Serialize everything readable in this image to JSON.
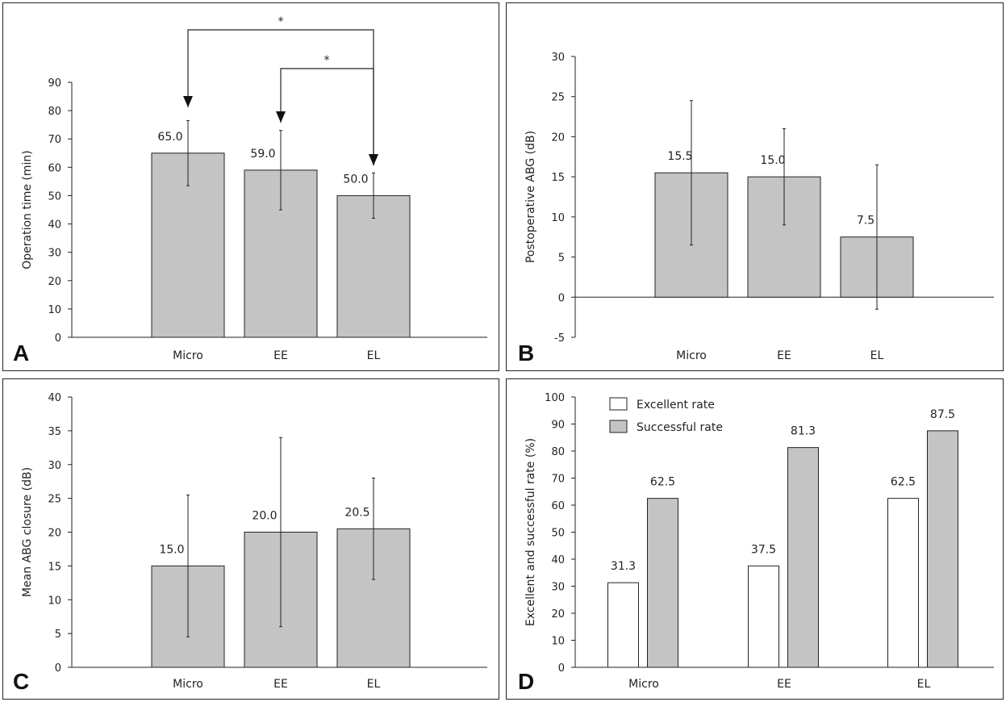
{
  "colors": {
    "bar_gray": "#c4c4c4",
    "bar_white": "#ffffff",
    "line": "#222222"
  },
  "chart_data": [
    {
      "id": "A",
      "type": "bar",
      "panel_label": "A",
      "ylabel": "Operation time (min)",
      "ylim": [
        0,
        90
      ],
      "yticks": [
        0,
        10,
        20,
        30,
        40,
        50,
        60,
        70,
        80,
        90
      ],
      "categories": [
        "Micro",
        "EE",
        "EL"
      ],
      "series": [
        {
          "values": [
            65.0,
            59.0,
            50.0
          ],
          "labels": [
            "65.0",
            "59.0",
            "50.0"
          ],
          "err_low": [
            53.5,
            45,
            42
          ],
          "err_high": [
            76.5,
            73,
            58
          ]
        }
      ],
      "annotations": [
        {
          "type": "significance",
          "from": "Micro",
          "to": "EL",
          "text": "*"
        },
        {
          "type": "significance",
          "from": "EE",
          "to": "EL",
          "text": "*"
        }
      ]
    },
    {
      "id": "B",
      "type": "bar",
      "panel_label": "B",
      "ylabel": "Postoperative ABG (dB)",
      "ylim": [
        -5,
        30
      ],
      "yticks": [
        -5,
        0,
        5,
        10,
        15,
        20,
        25,
        30
      ],
      "categories": [
        "Micro",
        "EE",
        "EL"
      ],
      "series": [
        {
          "values": [
            15.5,
            15.0,
            7.5
          ],
          "labels": [
            "15.5",
            "15.0",
            "7.5"
          ],
          "err_low": [
            6.5,
            9,
            -1.5
          ],
          "err_high": [
            24.5,
            21,
            16.5
          ]
        }
      ]
    },
    {
      "id": "C",
      "type": "bar",
      "panel_label": "C",
      "ylabel": "Mean ABG closure (dB)",
      "ylim": [
        0,
        40
      ],
      "yticks": [
        0,
        5,
        10,
        15,
        20,
        25,
        30,
        35,
        40
      ],
      "categories": [
        "Micro",
        "EE",
        "EL"
      ],
      "series": [
        {
          "values": [
            15.0,
            20.0,
            20.5
          ],
          "labels": [
            "15.0",
            "20.0",
            "20.5"
          ],
          "err_low": [
            4.5,
            6,
            13
          ],
          "err_high": [
            25.5,
            34,
            28
          ]
        }
      ]
    },
    {
      "id": "D",
      "type": "bar",
      "panel_label": "D",
      "ylabel": "Excellent and successful rate (%)",
      "ylim": [
        0,
        100
      ],
      "yticks": [
        0,
        10,
        20,
        30,
        40,
        50,
        60,
        70,
        80,
        90,
        100
      ],
      "categories": [
        "Micro",
        "EE",
        "EL"
      ],
      "legend_position": "top-left",
      "series": [
        {
          "name": "Excellent rate",
          "values": [
            31.3,
            37.5,
            62.5
          ],
          "labels": [
            "31.3",
            "37.5",
            "62.5"
          ],
          "fill": "#ffffff"
        },
        {
          "name": "Successful rate",
          "values": [
            62.5,
            81.3,
            87.5
          ],
          "labels": [
            "62.5",
            "81.3",
            "87.5"
          ],
          "fill": "#c4c4c4"
        }
      ]
    }
  ]
}
